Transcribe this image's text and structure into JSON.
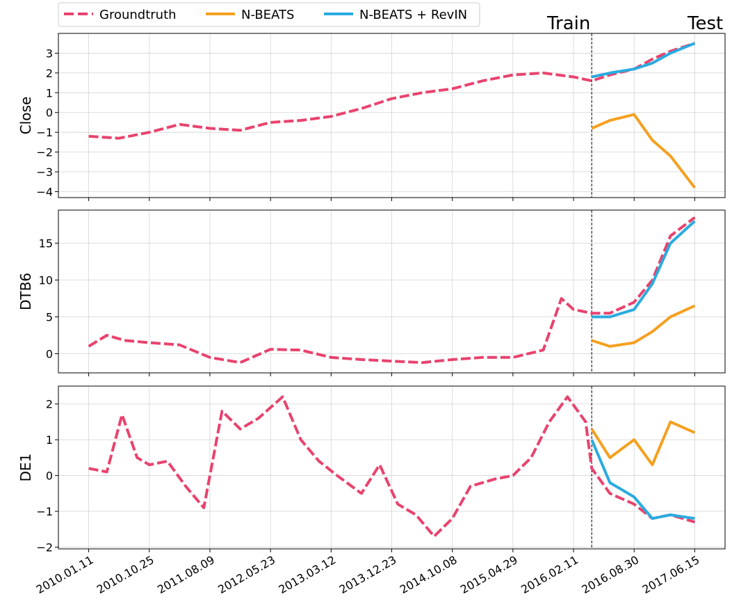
{
  "legend": {
    "items": [
      {
        "label": "Groundtruth",
        "color": "#E8436E",
        "dashed": true
      },
      {
        "label": "N-BEATS",
        "color": "#F5A020",
        "dashed": false
      },
      {
        "label": "N-BEATS + RevIN",
        "color": "#2AABE0",
        "dashed": false
      }
    ]
  },
  "region_labels": {
    "train": "Train",
    "test": "Test"
  },
  "chart_data": [
    {
      "type": "line",
      "ylabel": "Close",
      "ylim": [
        -4.3,
        4.0
      ],
      "yticks": [
        -4,
        -3,
        -2,
        -1,
        0,
        1,
        2,
        3
      ],
      "xlim": [
        -0.5,
        10.5
      ],
      "split_x": 8.3,
      "grid": true,
      "series": [
        {
          "name": "Groundtruth",
          "color": "#E8436E",
          "style": "dashed",
          "x": [
            0,
            0.5,
            1,
            1.5,
            2,
            2.5,
            3,
            3.5,
            4,
            4.5,
            5,
            5.5,
            6,
            6.5,
            7,
            7.5,
            8,
            8.3,
            8.6,
            9,
            9.3,
            9.6,
            10
          ],
          "y": [
            -1.2,
            -1.3,
            -1.0,
            -0.6,
            -0.8,
            -0.9,
            -0.5,
            -0.4,
            -0.2,
            0.2,
            0.7,
            1.0,
            1.2,
            1.6,
            1.9,
            2.0,
            1.8,
            1.6,
            1.9,
            2.2,
            2.7,
            3.1,
            3.5
          ]
        },
        {
          "name": "N-BEATS",
          "color": "#F5A020",
          "style": "solid",
          "x": [
            8.3,
            8.6,
            9,
            9.3,
            9.6,
            10
          ],
          "y": [
            -0.8,
            -0.4,
            -0.1,
            -1.4,
            -2.2,
            -3.8
          ]
        },
        {
          "name": "N-BEATS + RevIN",
          "color": "#2AABE0",
          "style": "solid",
          "x": [
            8.3,
            8.6,
            9,
            9.3,
            9.6,
            10
          ],
          "y": [
            1.8,
            2.0,
            2.2,
            2.5,
            3.0,
            3.5
          ]
        }
      ]
    },
    {
      "type": "line",
      "ylabel": "DTB6",
      "ylim": [
        -2.6,
        19.5
      ],
      "yticks": [
        0,
        5,
        10,
        15
      ],
      "xlim": [
        -0.5,
        10.5
      ],
      "split_x": 8.3,
      "grid": true,
      "series": [
        {
          "name": "Groundtruth",
          "color": "#E8436E",
          "style": "dashed",
          "x": [
            0,
            0.3,
            0.6,
            1,
            1.5,
            2,
            2.5,
            3,
            3.5,
            4,
            4.5,
            5,
            5.5,
            6,
            6.5,
            7,
            7.5,
            7.8,
            8,
            8.3,
            8.6,
            9,
            9.3,
            9.6,
            10
          ],
          "y": [
            1.0,
            2.5,
            1.8,
            1.5,
            1.2,
            -0.5,
            -1.2,
            0.6,
            0.5,
            -0.5,
            -0.8,
            -1.0,
            -1.2,
            -0.8,
            -0.5,
            -0.5,
            0.5,
            7.5,
            6.0,
            5.5,
            5.5,
            7.0,
            10.0,
            16.0,
            18.5
          ]
        },
        {
          "name": "N-BEATS",
          "color": "#F5A020",
          "style": "solid",
          "x": [
            8.3,
            8.6,
            9,
            9.3,
            9.6,
            10
          ],
          "y": [
            1.8,
            1.0,
            1.5,
            3.0,
            5.0,
            6.5
          ]
        },
        {
          "name": "N-BEATS + RevIN",
          "color": "#2AABE0",
          "style": "solid",
          "x": [
            8.3,
            8.6,
            9,
            9.3,
            9.6,
            10
          ],
          "y": [
            5.0,
            5.0,
            6.0,
            9.5,
            15.0,
            18.0
          ]
        }
      ]
    },
    {
      "type": "line",
      "ylabel": "DE1",
      "ylim": [
        -2.05,
        2.5
      ],
      "yticks": [
        -2,
        -1,
        0,
        1,
        2
      ],
      "xlim": [
        -0.5,
        10.5
      ],
      "split_x": 8.3,
      "grid": true,
      "series": [
        {
          "name": "Groundtruth",
          "color": "#E8436E",
          "style": "dashed",
          "x": [
            0,
            0.3,
            0.55,
            0.8,
            1,
            1.3,
            1.6,
            1.9,
            2.2,
            2.5,
            2.8,
            3.2,
            3.5,
            3.8,
            4.1,
            4.5,
            4.8,
            5.1,
            5.4,
            5.7,
            6,
            6.3,
            6.7,
            7,
            7.3,
            7.6,
            7.9,
            8.2,
            8.3,
            8.6,
            9,
            9.3,
            9.6,
            10
          ],
          "y": [
            0.2,
            0.1,
            1.7,
            0.5,
            0.3,
            0.4,
            -0.3,
            -0.9,
            1.8,
            1.3,
            1.6,
            2.2,
            1.0,
            0.4,
            0.0,
            -0.5,
            0.3,
            -0.8,
            -1.1,
            -1.7,
            -1.2,
            -0.3,
            -0.1,
            0.0,
            0.5,
            1.5,
            2.2,
            1.5,
            0.2,
            -0.5,
            -0.8,
            -1.2,
            -1.1,
            -1.3
          ]
        },
        {
          "name": "N-BEATS",
          "color": "#F5A020",
          "style": "solid",
          "x": [
            8.3,
            8.6,
            9,
            9.3,
            9.6,
            10
          ],
          "y": [
            1.3,
            0.5,
            1.0,
            0.3,
            1.5,
            1.2
          ]
        },
        {
          "name": "N-BEATS + RevIN",
          "color": "#2AABE0",
          "style": "solid",
          "x": [
            8.3,
            8.6,
            9,
            9.3,
            9.6,
            10
          ],
          "y": [
            1.0,
            -0.2,
            -0.6,
            -1.2,
            -1.1,
            -1.2
          ]
        }
      ]
    }
  ],
  "x_tick_labels": [
    "2010.01.11",
    "2010.10.25",
    "2011.08.09",
    "2012.05.23",
    "2013.03.12",
    "2013.12.23",
    "2014.10.08",
    "2015.04.29",
    "2016.02.11",
    "2016.08.30",
    "2017.06.15"
  ]
}
